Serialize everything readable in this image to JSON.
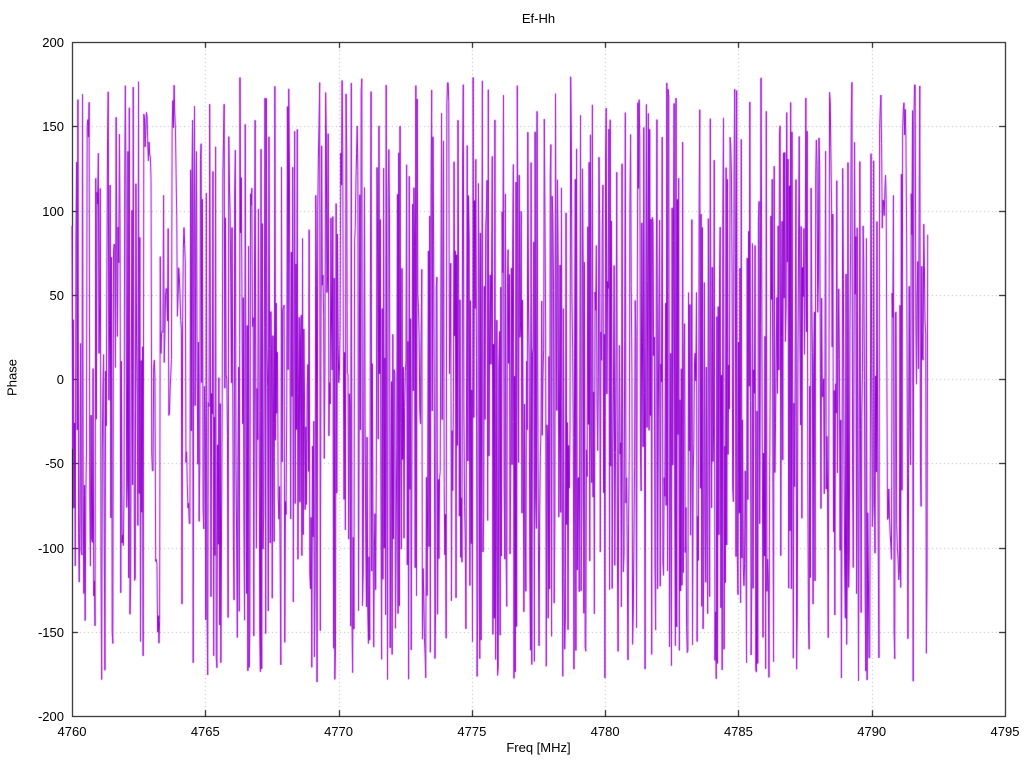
{
  "chart_data": {
    "type": "line",
    "title": "Ef-Hh",
    "xlabel": "Freq [MHz]",
    "ylabel": "Phase",
    "xlim": [
      4760,
      4795
    ],
    "ylim": [
      -200,
      200
    ],
    "x_ticks": [
      4760,
      4765,
      4770,
      4775,
      4780,
      4785,
      4790,
      4795
    ],
    "y_ticks": [
      -200,
      -150,
      -100,
      -50,
      0,
      50,
      100,
      150,
      200
    ],
    "grid": true,
    "legend": "none",
    "style": {
      "background": "#ffffff",
      "border_color": "#000000",
      "grid_color": "#bbbbbb",
      "line_color": "#9400d3"
    },
    "series": [
      {
        "name": "Ef-Hh",
        "color": "#9400d3",
        "x_start": 4760.0,
        "x_end": 4792.1,
        "n_points": 1300,
        "y_min": -180,
        "y_max": 180,
        "synthesis": "wrapped interferometric phase: values jump pseudo-randomly across the full -180..180 deg range over the whole measured band",
        "seed": 20,
        "sparse_regions": [
          [
            4762.7,
            4764.4
          ],
          [
            4790.3,
            4791.3
          ]
        ]
      }
    ]
  }
}
